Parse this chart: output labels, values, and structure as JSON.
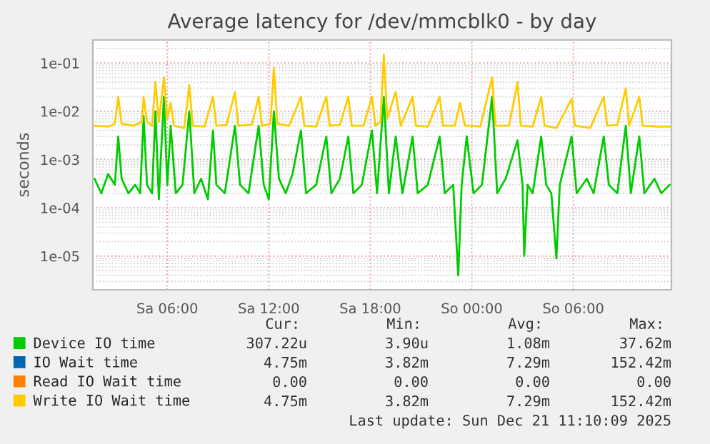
{
  "chart_data": {
    "type": "line",
    "title": "Average latency for /dev/mmcblk0 - by day",
    "ylabel": "seconds",
    "log": "y",
    "grid": true,
    "legend": "bottom",
    "marker": "none",
    "line_style": "solid",
    "xlim": [
      "2025-12-20T01:36",
      "2025-12-21T11:48"
    ],
    "xticks": [
      {
        "value": "2025-12-20T06:00",
        "label": "Sa 06:00"
      },
      {
        "value": "2025-12-20T12:00",
        "label": "Sa 12:00"
      },
      {
        "value": "2025-12-20T18:00",
        "label": "Sa 18:00"
      },
      {
        "value": "2025-12-21T00:00",
        "label": "So 00:00"
      },
      {
        "value": "2025-12-21T06:00",
        "label": "So 06:00"
      }
    ],
    "ylim": [
      2e-06,
      0.3
    ],
    "yticks": [
      {
        "value": 1e-05,
        "label": "1e-05"
      },
      {
        "value": 0.0001,
        "label": "1e-04"
      },
      {
        "value": 0.001,
        "label": "1e-03"
      },
      {
        "value": 0.01,
        "label": "1e-02"
      },
      {
        "value": 0.1,
        "label": "1e-01"
      }
    ],
    "series": [
      {
        "name": "Device IO time",
        "color": "#00cc00",
        "x": [
          "2025-12-20T01:42",
          "2025-12-20T02:06",
          "2025-12-20T02:30",
          "2025-12-20T02:54",
          "2025-12-20T03:06",
          "2025-12-20T03:18",
          "2025-12-20T03:42",
          "2025-12-20T04:06",
          "2025-12-20T04:24",
          "2025-12-20T04:36",
          "2025-12-20T04:48",
          "2025-12-20T05:06",
          "2025-12-20T05:18",
          "2025-12-20T05:30",
          "2025-12-20T05:48",
          "2025-12-20T06:00",
          "2025-12-20T06:12",
          "2025-12-20T06:30",
          "2025-12-20T06:54",
          "2025-12-20T07:18",
          "2025-12-20T07:36",
          "2025-12-20T08:00",
          "2025-12-20T08:24",
          "2025-12-20T08:42",
          "2025-12-20T08:54",
          "2025-12-20T09:24",
          "2025-12-20T10:00",
          "2025-12-20T10:18",
          "2025-12-20T10:48",
          "2025-12-20T11:24",
          "2025-12-20T11:42",
          "2025-12-20T12:00",
          "2025-12-20T12:18",
          "2025-12-20T12:36",
          "2025-12-20T13:00",
          "2025-12-20T13:24",
          "2025-12-20T13:54",
          "2025-12-20T14:12",
          "2025-12-20T14:48",
          "2025-12-20T15:24",
          "2025-12-20T15:42",
          "2025-12-20T16:12",
          "2025-12-20T16:42",
          "2025-12-20T17:00",
          "2025-12-20T17:30",
          "2025-12-20T18:06",
          "2025-12-20T18:24",
          "2025-12-20T18:48",
          "2025-12-20T19:06",
          "2025-12-20T19:30",
          "2025-12-20T19:54",
          "2025-12-20T20:30",
          "2025-12-20T20:48",
          "2025-12-20T21:24",
          "2025-12-20T22:06",
          "2025-12-20T22:24",
          "2025-12-20T22:54",
          "2025-12-20T23:12",
          "2025-12-20T23:24",
          "2025-12-20T23:42",
          "2025-12-21T00:06",
          "2025-12-21T00:36",
          "2025-12-21T01:12",
          "2025-12-21T01:30",
          "2025-12-21T02:00",
          "2025-12-21T02:42",
          "2025-12-21T03:00",
          "2025-12-21T03:06",
          "2025-12-21T03:18",
          "2025-12-21T03:36",
          "2025-12-21T04:06",
          "2025-12-21T04:24",
          "2025-12-21T04:42",
          "2025-12-21T05:00",
          "2025-12-21T05:12",
          "2025-12-21T05:54",
          "2025-12-21T06:12",
          "2025-12-21T06:48",
          "2025-12-21T07:12",
          "2025-12-21T07:48",
          "2025-12-21T08:06",
          "2025-12-21T08:36",
          "2025-12-21T09:06",
          "2025-12-21T09:24",
          "2025-12-21T09:54",
          "2025-12-21T10:12",
          "2025-12-21T10:48",
          "2025-12-21T11:12",
          "2025-12-21T11:42"
        ],
        "values": [
          0.0004,
          0.0002,
          0.0005,
          0.0003,
          0.003,
          0.0004,
          0.0002,
          0.0003,
          0.0002,
          0.008,
          0.0003,
          0.0002,
          0.01,
          0.00015,
          0.02,
          0.0003,
          0.005,
          0.0002,
          0.0003,
          0.01,
          0.0002,
          0.0004,
          0.00015,
          0.004,
          0.0003,
          0.0002,
          0.005,
          0.0003,
          0.0002,
          0.005,
          0.0003,
          0.00015,
          0.01,
          0.0004,
          0.0002,
          0.0005,
          0.004,
          0.0002,
          0.0003,
          0.003,
          0.0002,
          0.0004,
          0.003,
          0.0002,
          0.0003,
          0.004,
          0.0002,
          0.02,
          0.0002,
          0.003,
          0.0002,
          0.003,
          0.0002,
          0.0003,
          0.003,
          0.0002,
          0.0003,
          4e-06,
          0.0003,
          0.003,
          0.0002,
          0.0003,
          0.02,
          0.0002,
          0.0004,
          0.0025,
          0.0003,
          1e-05,
          0.0003,
          0.0002,
          0.003,
          0.0003,
          0.0002,
          9e-06,
          0.0003,
          0.003,
          0.0002,
          0.0004,
          0.0002,
          0.003,
          0.0003,
          0.0002,
          0.005,
          0.0002,
          0.003,
          0.0002,
          0.0004,
          0.0002,
          0.0003
        ]
      },
      {
        "name": "IO Wait time",
        "color": "#0066b3"
      },
      {
        "name": "Read IO Wait time",
        "color": "#ff8000"
      },
      {
        "name": "Write IO Wait time",
        "color": "#ffcc00",
        "x": [
          "2025-12-20T01:42",
          "2025-12-20T02:30",
          "2025-12-20T02:54",
          "2025-12-20T03:06",
          "2025-12-20T03:18",
          "2025-12-20T04:00",
          "2025-12-20T04:30",
          "2025-12-20T04:36",
          "2025-12-20T04:48",
          "2025-12-20T05:06",
          "2025-12-20T05:18",
          "2025-12-20T05:30",
          "2025-12-20T05:48",
          "2025-12-20T06:00",
          "2025-12-20T06:12",
          "2025-12-20T06:24",
          "2025-12-20T07:00",
          "2025-12-20T07:18",
          "2025-12-20T07:30",
          "2025-12-20T08:12",
          "2025-12-20T08:42",
          "2025-12-20T08:54",
          "2025-12-20T09:30",
          "2025-12-20T10:00",
          "2025-12-20T10:12",
          "2025-12-20T11:00",
          "2025-12-20T11:24",
          "2025-12-20T11:36",
          "2025-12-20T12:06",
          "2025-12-20T12:18",
          "2025-12-20T12:30",
          "2025-12-20T13:12",
          "2025-12-20T13:54",
          "2025-12-20T14:06",
          "2025-12-20T14:48",
          "2025-12-20T15:24",
          "2025-12-20T15:36",
          "2025-12-20T16:12",
          "2025-12-20T16:42",
          "2025-12-20T16:54",
          "2025-12-20T17:36",
          "2025-12-20T18:06",
          "2025-12-20T18:18",
          "2025-12-20T18:36",
          "2025-12-20T18:48",
          "2025-12-20T19:00",
          "2025-12-20T19:30",
          "2025-12-20T19:48",
          "2025-12-20T20:30",
          "2025-12-20T20:42",
          "2025-12-20T21:24",
          "2025-12-20T22:06",
          "2025-12-20T22:18",
          "2025-12-20T23:00",
          "2025-12-20T23:18",
          "2025-12-20T23:36",
          "2025-12-21T00:00",
          "2025-12-21T00:30",
          "2025-12-21T01:12",
          "2025-12-21T01:24",
          "2025-12-21T02:12",
          "2025-12-21T02:42",
          "2025-12-21T02:54",
          "2025-12-21T03:36",
          "2025-12-21T04:06",
          "2025-12-21T04:18",
          "2025-12-21T05:00",
          "2025-12-21T05:54",
          "2025-12-21T06:06",
          "2025-12-21T07:00",
          "2025-12-21T07:48",
          "2025-12-21T08:00",
          "2025-12-21T08:36",
          "2025-12-21T09:06",
          "2025-12-21T09:18",
          "2025-12-21T09:54",
          "2025-12-21T10:06",
          "2025-12-21T11:00",
          "2025-12-21T11:42"
        ],
        "values": [
          0.005,
          0.0048,
          0.0055,
          0.02,
          0.0055,
          0.005,
          0.006,
          0.02,
          0.006,
          0.005,
          0.04,
          0.006,
          0.05,
          0.007,
          0.015,
          0.005,
          0.0045,
          0.035,
          0.005,
          0.0048,
          0.02,
          0.005,
          0.0052,
          0.025,
          0.005,
          0.0053,
          0.02,
          0.005,
          0.0055,
          0.08,
          0.0055,
          0.005,
          0.02,
          0.005,
          0.0048,
          0.02,
          0.005,
          0.0052,
          0.02,
          0.005,
          0.005,
          0.02,
          0.005,
          0.006,
          0.15,
          0.007,
          0.025,
          0.005,
          0.02,
          0.005,
          0.0048,
          0.02,
          0.005,
          0.005,
          0.015,
          0.005,
          0.005,
          0.0048,
          0.05,
          0.005,
          0.005,
          0.04,
          0.005,
          0.0048,
          0.02,
          0.005,
          0.0045,
          0.018,
          0.005,
          0.0045,
          0.02,
          0.005,
          0.0052,
          0.03,
          0.005,
          0.02,
          0.005,
          0.0048,
          0.0048
        ]
      }
    ],
    "annotations": [
      "Cur:",
      "Min:",
      "Avg:",
      "Max:",
      "307.22u",
      "3.90u",
      "1.08m",
      "37.62m",
      "4.75m",
      "3.82m",
      "7.29m",
      "152.42m",
      "0.00",
      "0.00",
      "0.00",
      "0.00",
      "4.75m",
      "3.82m",
      "7.29m",
      "152.42m",
      "Last update: Sun Dec 21 11:10:09 2025"
    ]
  }
}
